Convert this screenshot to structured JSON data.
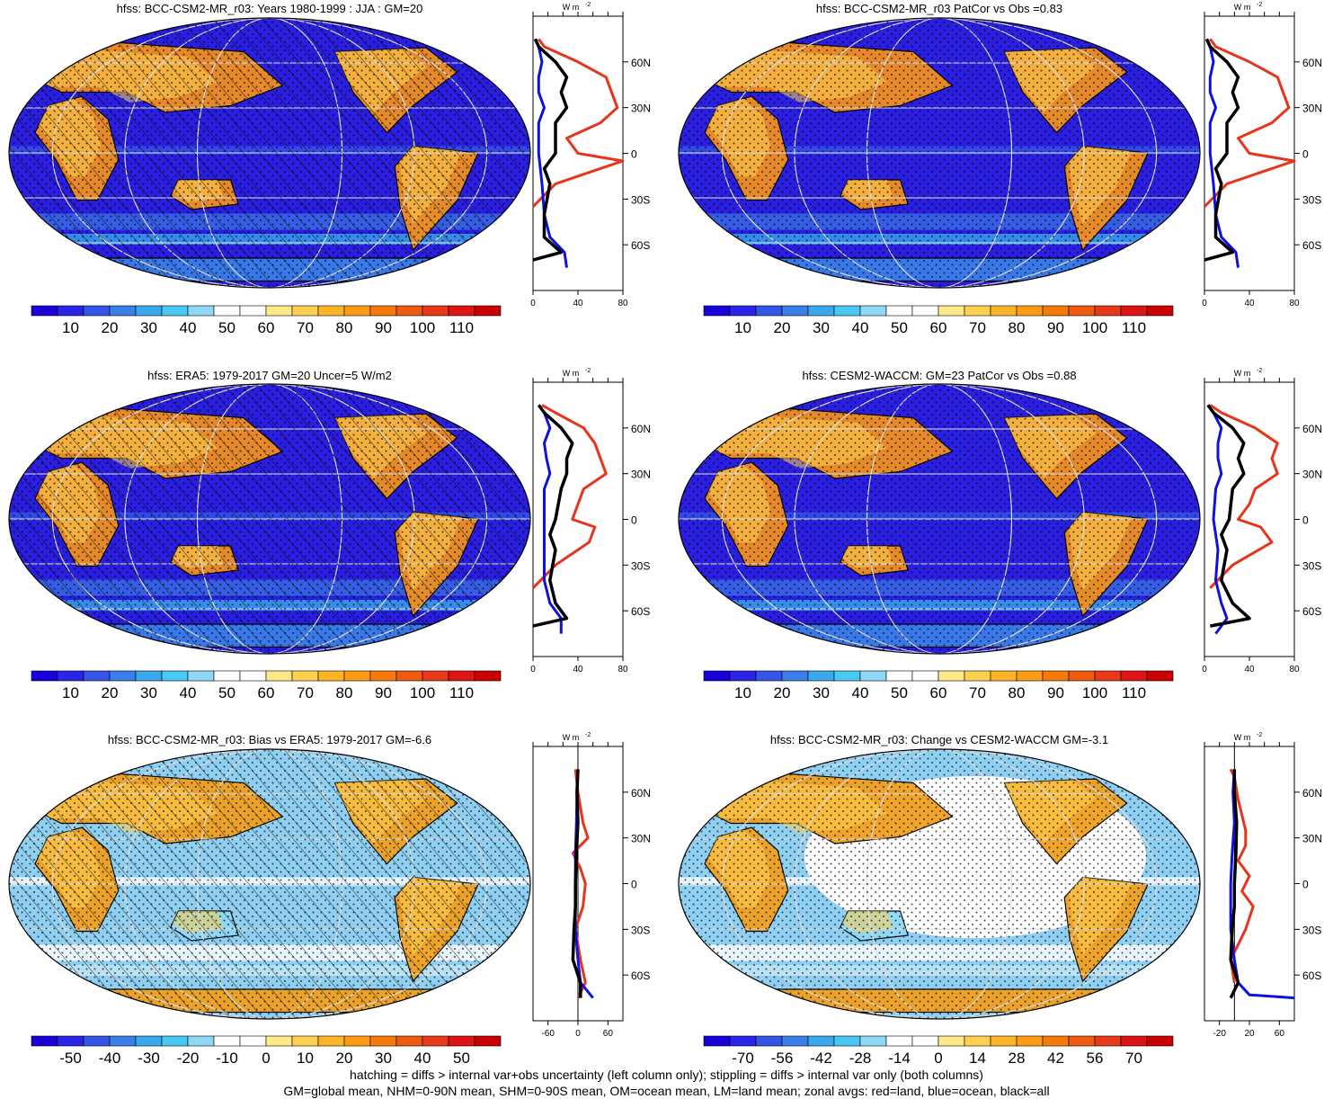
{
  "panels": [
    {
      "id": "model",
      "title": "hfss: BCC-CSM2-MR_r03: Years 1980-1999 : JJA : GM=20",
      "colorbar_labels": [
        "10",
        "20",
        "30",
        "40",
        "50",
        "60",
        "70",
        "80",
        "90",
        "100",
        "110"
      ],
      "colorbar_type": "abs",
      "profile_units": "W m",
      "profile_units_sup": "-2",
      "profile_xticks": [
        "0",
        "40",
        "80"
      ],
      "profile_xrange": [
        0,
        80
      ],
      "lat_labels": [
        "60N",
        "30N",
        "0",
        "30S",
        "60S"
      ]
    },
    {
      "id": "model-patcor",
      "title": "hfss: BCC-CSM2-MR_r03 PatCor vs Obs =0.83",
      "colorbar_labels": [
        "10",
        "20",
        "30",
        "40",
        "50",
        "60",
        "70",
        "80",
        "90",
        "100",
        "110"
      ],
      "colorbar_type": "abs",
      "profile_units": "W m",
      "profile_units_sup": "-2",
      "profile_xticks": [
        "0",
        "40",
        "80"
      ],
      "profile_xrange": [
        0,
        80
      ],
      "lat_labels": [
        "60N",
        "30N",
        "0",
        "30S",
        "60S"
      ]
    },
    {
      "id": "obs",
      "title": "hfss: ERA5: 1979-2017 GM=20 Uncer=5 W/m2",
      "colorbar_labels": [
        "10",
        "20",
        "30",
        "40",
        "50",
        "60",
        "70",
        "80",
        "90",
        "100",
        "110"
      ],
      "colorbar_type": "abs",
      "profile_units": "W m",
      "profile_units_sup": "-2",
      "profile_xticks": [
        "0",
        "40",
        "80"
      ],
      "profile_xrange": [
        0,
        80
      ],
      "lat_labels": [
        "60N",
        "30N",
        "0",
        "30S",
        "60S"
      ]
    },
    {
      "id": "ref-model",
      "title": "hfss: CESM2-WACCM: GM=23 PatCor vs Obs =0.88",
      "colorbar_labels": [
        "10",
        "20",
        "30",
        "40",
        "50",
        "60",
        "70",
        "80",
        "90",
        "100",
        "110"
      ],
      "colorbar_type": "abs",
      "profile_units": "W m",
      "profile_units_sup": "-2",
      "profile_xticks": [
        "0",
        "40",
        "80"
      ],
      "profile_xrange": [
        0,
        80
      ],
      "lat_labels": [
        "60N",
        "30N",
        "0",
        "30S",
        "60S"
      ]
    },
    {
      "id": "bias",
      "title": "hfss: BCC-CSM2-MR_r03: Bias vs ERA5: 1979-2017 GM=-6.6",
      "colorbar_labels": [
        "-50",
        "-40",
        "-30",
        "-20",
        "-10",
        "0",
        "10",
        "20",
        "30",
        "40",
        "50"
      ],
      "colorbar_type": "diff",
      "profile_units": "W m",
      "profile_units_sup": "-2",
      "profile_xticks": [
        "-60",
        "0",
        "60"
      ],
      "profile_xrange": [
        -90,
        90
      ],
      "lat_labels": [
        "60N",
        "30N",
        "0",
        "30S",
        "60S"
      ]
    },
    {
      "id": "change",
      "title": "hfss: BCC-CSM2-MR_r03: Change vs CESM2-WACCM GM=-3.1",
      "colorbar_labels": [
        "-70",
        "-56",
        "-42",
        "-28",
        "-14",
        "0",
        "14",
        "28",
        "42",
        "56",
        "70"
      ],
      "colorbar_type": "diff",
      "profile_units": "W m",
      "profile_units_sup": "-2",
      "profile_xticks": [
        "-20",
        "20",
        "60"
      ],
      "profile_xrange": [
        -40,
        80
      ],
      "lat_labels": [
        "60N",
        "30N",
        "0",
        "30S",
        "60S"
      ]
    }
  ],
  "colors": {
    "abs": [
      "#1a00d8",
      "#2a24e8",
      "#3455e6",
      "#3a7ee8",
      "#3aa8ee",
      "#49c8f2",
      "#8fd8f5",
      "#ffffff",
      "#ffffff",
      "#ffe88a",
      "#ffd050",
      "#ffb428",
      "#ff9a14",
      "#f57a0a",
      "#ee5a10",
      "#e83a18",
      "#dd1414",
      "#c80000"
    ],
    "diff": [
      "#1a00d8",
      "#2a24e8",
      "#3455e6",
      "#3a7ee8",
      "#3aa8ee",
      "#49c8f2",
      "#8fd8f5",
      "#ffffff",
      "#ffffff",
      "#ffe88a",
      "#ffd050",
      "#ffb428",
      "#ff9a14",
      "#f57a0a",
      "#ee5a10",
      "#e83a18",
      "#dd1414",
      "#c80000"
    ],
    "land": "#e8341c",
    "ocean": "#1010e0",
    "all": "#000000"
  },
  "chart_data": [
    {
      "type": "line",
      "panel": "model",
      "xlabel": "W m-2",
      "y": [
        -80,
        -60,
        -30,
        0,
        30,
        60,
        80
      ],
      "y_labels": [
        "60S",
        "30S",
        "0",
        "30N",
        "60N"
      ],
      "series": [
        {
          "name": "red=land",
          "lat": [
            -35,
            -20,
            -10,
            -5,
            0,
            10,
            20,
            30,
            40,
            50,
            60,
            70,
            75
          ],
          "values": [
            0,
            20,
            60,
            80,
            40,
            30,
            60,
            75,
            70,
            65,
            40,
            10,
            5
          ]
        },
        {
          "name": "blue=ocean",
          "lat": [
            -75,
            -65,
            -55,
            -40,
            -20,
            0,
            20,
            30,
            40,
            50,
            60,
            70,
            75
          ],
          "values": [
            30,
            28,
            15,
            10,
            8,
            5,
            5,
            10,
            5,
            5,
            8,
            5,
            2
          ]
        },
        {
          "name": "black=all",
          "lat": [
            -70,
            -65,
            -55,
            -40,
            -20,
            -10,
            0,
            20,
            30,
            40,
            50,
            60,
            70,
            75
          ],
          "values": [
            0,
            25,
            10,
            10,
            15,
            10,
            20,
            20,
            30,
            25,
            30,
            20,
            5,
            2
          ]
        }
      ]
    },
    {
      "type": "line",
      "panel": "model-patcor",
      "xlabel": "W m-2",
      "y_labels": [
        "60S",
        "30S",
        "0",
        "30N",
        "60N"
      ],
      "series": [
        {
          "name": "red=land",
          "lat": [
            -35,
            -20,
            -10,
            -5,
            0,
            10,
            20,
            30,
            40,
            50,
            60,
            70,
            75
          ],
          "values": [
            0,
            20,
            60,
            80,
            40,
            30,
            60,
            75,
            70,
            65,
            40,
            10,
            5
          ]
        },
        {
          "name": "blue=ocean",
          "lat": [
            -75,
            -65,
            -55,
            -40,
            -20,
            0,
            20,
            30,
            40,
            50,
            60,
            70,
            75
          ],
          "values": [
            30,
            28,
            15,
            10,
            8,
            5,
            5,
            10,
            5,
            5,
            8,
            5,
            2
          ]
        },
        {
          "name": "black=all",
          "lat": [
            -70,
            -65,
            -55,
            -40,
            -20,
            -10,
            0,
            20,
            30,
            40,
            50,
            60,
            70,
            75
          ],
          "values": [
            0,
            25,
            10,
            10,
            15,
            10,
            20,
            20,
            30,
            25,
            30,
            20,
            5,
            2
          ]
        }
      ]
    },
    {
      "type": "line",
      "panel": "obs",
      "xlabel": "W m-2",
      "y_labels": [
        "60S",
        "30S",
        "0",
        "30N",
        "60N"
      ],
      "series": [
        {
          "name": "red=land",
          "lat": [
            -45,
            -30,
            -15,
            -5,
            0,
            10,
            20,
            30,
            40,
            50,
            60,
            70,
            75
          ],
          "values": [
            0,
            20,
            50,
            55,
            35,
            40,
            45,
            65,
            60,
            55,
            45,
            20,
            8
          ]
        },
        {
          "name": "blue=ocean",
          "lat": [
            -75,
            -65,
            -55,
            -40,
            -20,
            0,
            20,
            30,
            40,
            50,
            60,
            70,
            75
          ],
          "values": [
            25,
            25,
            15,
            10,
            10,
            10,
            10,
            15,
            12,
            10,
            15,
            10,
            5
          ]
        },
        {
          "name": "black=all",
          "lat": [
            -70,
            -65,
            -55,
            -40,
            -20,
            -10,
            0,
            20,
            30,
            40,
            50,
            60,
            70,
            75
          ],
          "values": [
            0,
            30,
            20,
            15,
            20,
            15,
            20,
            25,
            30,
            30,
            35,
            25,
            10,
            5
          ]
        }
      ]
    },
    {
      "type": "line",
      "panel": "ref-model",
      "xlabel": "W m-2",
      "y_labels": [
        "60S",
        "30S",
        "0",
        "30N",
        "60N"
      ],
      "series": [
        {
          "name": "red=land",
          "lat": [
            -45,
            -30,
            -15,
            -5,
            0,
            10,
            20,
            30,
            40,
            50,
            60,
            70,
            75
          ],
          "values": [
            5,
            25,
            60,
            50,
            30,
            40,
            45,
            65,
            60,
            65,
            45,
            15,
            5
          ]
        },
        {
          "name": "blue=ocean",
          "lat": [
            -75,
            -65,
            -55,
            -40,
            -20,
            0,
            20,
            30,
            40,
            50,
            60,
            70,
            75
          ],
          "values": [
            10,
            20,
            15,
            10,
            12,
            8,
            10,
            15,
            12,
            12,
            15,
            8,
            3
          ]
        },
        {
          "name": "black=all",
          "lat": [
            -70,
            -65,
            -55,
            -40,
            -20,
            -10,
            0,
            20,
            30,
            40,
            50,
            60,
            70,
            75
          ],
          "values": [
            5,
            40,
            25,
            15,
            20,
            15,
            22,
            25,
            35,
            30,
            35,
            25,
            8,
            3
          ]
        }
      ]
    },
    {
      "type": "line",
      "panel": "bias",
      "xlabel": "W m-2",
      "y_labels": [
        "60S",
        "30S",
        "0",
        "30N",
        "60N"
      ],
      "series": [
        {
          "name": "red=land",
          "lat": [
            -75,
            -65,
            -50,
            -30,
            -15,
            0,
            10,
            20,
            30,
            40,
            50,
            60,
            75
          ],
          "values": [
            0,
            15,
            5,
            -5,
            10,
            15,
            5,
            -10,
            20,
            10,
            5,
            0,
            -5
          ]
        },
        {
          "name": "blue=ocean",
          "lat": [
            -75,
            -65,
            -50,
            -30,
            -15,
            0,
            20,
            40,
            60,
            75
          ],
          "values": [
            30,
            5,
            0,
            -5,
            -5,
            -5,
            -5,
            -3,
            -2,
            0
          ]
        },
        {
          "name": "black=all",
          "lat": [
            -75,
            -65,
            -50,
            -30,
            -15,
            0,
            20,
            40,
            60,
            75
          ],
          "values": [
            5,
            5,
            -10,
            -8,
            -5,
            -5,
            -3,
            0,
            -2,
            0
          ]
        }
      ]
    },
    {
      "type": "line",
      "panel": "change",
      "xlabel": "W m-2",
      "y_labels": [
        "60S",
        "30S",
        "0",
        "30N",
        "60N"
      ],
      "series": [
        {
          "name": "red=land",
          "lat": [
            -65,
            -50,
            -30,
            -15,
            -5,
            5,
            15,
            25,
            35,
            45,
            55,
            70,
            75
          ],
          "values": [
            0,
            -5,
            15,
            25,
            10,
            20,
            5,
            15,
            15,
            10,
            5,
            0,
            -5
          ]
        },
        {
          "name": "blue=ocean",
          "lat": [
            -75,
            -73,
            -65,
            -50,
            -30,
            0,
            20,
            40,
            60,
            75
          ],
          "values": [
            80,
            20,
            5,
            0,
            -5,
            -5,
            -3,
            0,
            -2,
            0
          ]
        },
        {
          "name": "black=all",
          "lat": [
            -75,
            -65,
            -50,
            -30,
            -15,
            0,
            20,
            40,
            60,
            75
          ],
          "values": [
            -5,
            5,
            -5,
            -3,
            0,
            0,
            2,
            3,
            0,
            0
          ]
        }
      ]
    }
  ],
  "footer": {
    "line1": "hatching = diffs > internal var+obs uncertainty (left column only); stippling = diffs > internal var only (both columns)",
    "line2": "GM=global mean, NHM=0-90N mean, SHM=0-90S mean, OM=ocean mean, LM=land mean; zonal avgs: red=land, blue=ocean, black=all"
  }
}
